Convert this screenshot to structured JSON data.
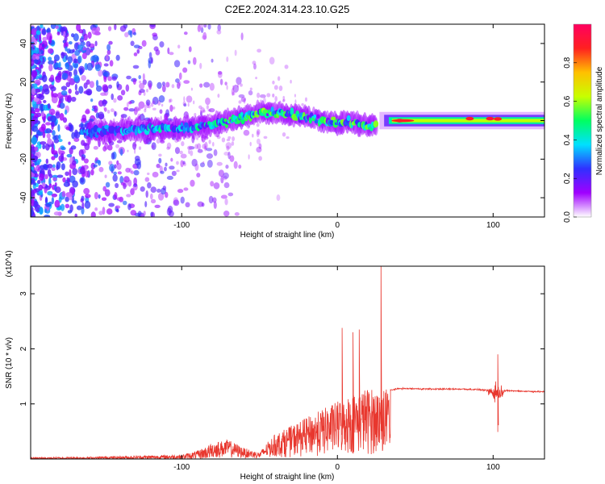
{
  "figure": {
    "title": "C2E2.2024.314.23.10.G25"
  },
  "chart_data": [
    {
      "type": "heatmap",
      "xlabel": "Height of straight line (km)",
      "ylabel": "Frequency (Hz)",
      "xlim": [
        -197,
        133
      ],
      "ylim": [
        -50,
        50
      ],
      "x_ticks": [
        -100,
        0,
        100
      ],
      "y_ticks": [
        -40,
        -20,
        0,
        20,
        40
      ],
      "colorbar": {
        "label": "Normalized spectral amplitude",
        "range": [
          0,
          1
        ],
        "ticks": [
          "0.0",
          "0.2",
          "0.4",
          "0.6",
          "0.8"
        ],
        "colormap": [
          "#ffffff",
          "#a000ff",
          "#3030ff",
          "#00e0ff",
          "#00ff60",
          "#c8ff00",
          "#ffc000",
          "#ff2020",
          "#ff0060"
        ]
      },
      "ridge": {
        "x": [
          -190,
          -160,
          -140,
          -120,
          -100,
          -80,
          -60,
          -50,
          -40,
          -30,
          -20,
          -10,
          0,
          10,
          20,
          25,
          30,
          40,
          60,
          80,
          100,
          120,
          133
        ],
        "y": [
          -6,
          -6,
          -5,
          -4,
          -4,
          -2,
          2,
          4,
          4,
          3,
          2,
          0,
          -1,
          -1,
          -3,
          -2,
          -1,
          0,
          0,
          1,
          1,
          0,
          0
        ]
      }
    },
    {
      "type": "line",
      "xlabel": "Height of straight line (km)",
      "ylabel": "SNR (10 * v/v)",
      "y_multiplier": "(x10^4)",
      "xlim": [
        -197,
        133
      ],
      "ylim": [
        0,
        3.5
      ],
      "x_ticks": [
        -100,
        0,
        100
      ],
      "y_ticks": [
        1,
        2,
        3
      ],
      "line_color": "#e8372e",
      "envelope": {
        "x": [
          -197,
          -160,
          -130,
          -100,
          -90,
          -80,
          -70,
          -60,
          -50,
          -45,
          -40,
          -30,
          -20,
          -10,
          0,
          10,
          20,
          25,
          30,
          34,
          40,
          60,
          80,
          90,
          95,
          100,
          105,
          110,
          120,
          133
        ],
        "y": [
          0.03,
          0.04,
          0.06,
          0.08,
          0.15,
          0.3,
          0.35,
          0.2,
          0.12,
          0.3,
          0.45,
          0.6,
          0.75,
          0.9,
          1.05,
          1.2,
          1.3,
          1.25,
          1.3,
          1.25,
          1.28,
          1.27,
          1.27,
          1.26,
          1.25,
          1.22,
          1.23,
          1.24,
          1.23,
          1.22
        ]
      },
      "peaks": [
        {
          "x": 3,
          "y": 2.38
        },
        {
          "x": 10,
          "y": 2.3
        },
        {
          "x": 14,
          "y": 2.35
        },
        {
          "x": 28,
          "y": 3.5
        },
        {
          "x": 103,
          "y": 1.9
        }
      ]
    }
  ]
}
